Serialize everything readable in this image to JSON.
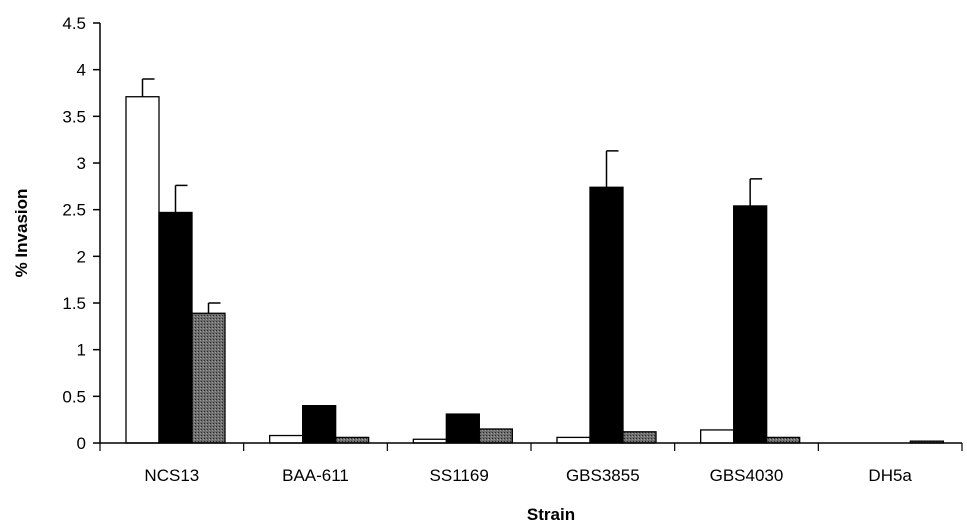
{
  "chart_data": {
    "type": "bar",
    "title": "",
    "xlabel": "Strain",
    "ylabel": "% Invasion",
    "ylim": [
      0,
      4.5
    ],
    "yticks": [
      "0",
      "0.5",
      "1",
      "1.5",
      "2",
      "2.5",
      "3",
      "3.5",
      "4",
      "4.5"
    ],
    "categories": [
      "NCS13",
      "BAA-611",
      "SS1169",
      "GBS3855",
      "GBS4030",
      "DH5a"
    ],
    "grid": false,
    "legend": "none",
    "series": [
      {
        "color": "#ffffff",
        "values": [
          3.71,
          0.08,
          0.04,
          0.06,
          0.14,
          0.0
        ],
        "errors": [
          0.19,
          0,
          0,
          0,
          0,
          0
        ]
      },
      {
        "color": "#000000",
        "values": [
          2.47,
          0.4,
          0.31,
          2.74,
          2.54,
          0.0
        ],
        "errors": [
          0.29,
          0,
          0,
          0.39,
          0.29,
          0
        ]
      },
      {
        "color": "#555555",
        "values": [
          1.39,
          0.06,
          0.15,
          0.12,
          0.06,
          0.02
        ],
        "errors": [
          0.11,
          0,
          0,
          0,
          0,
          0
        ]
      }
    ]
  }
}
